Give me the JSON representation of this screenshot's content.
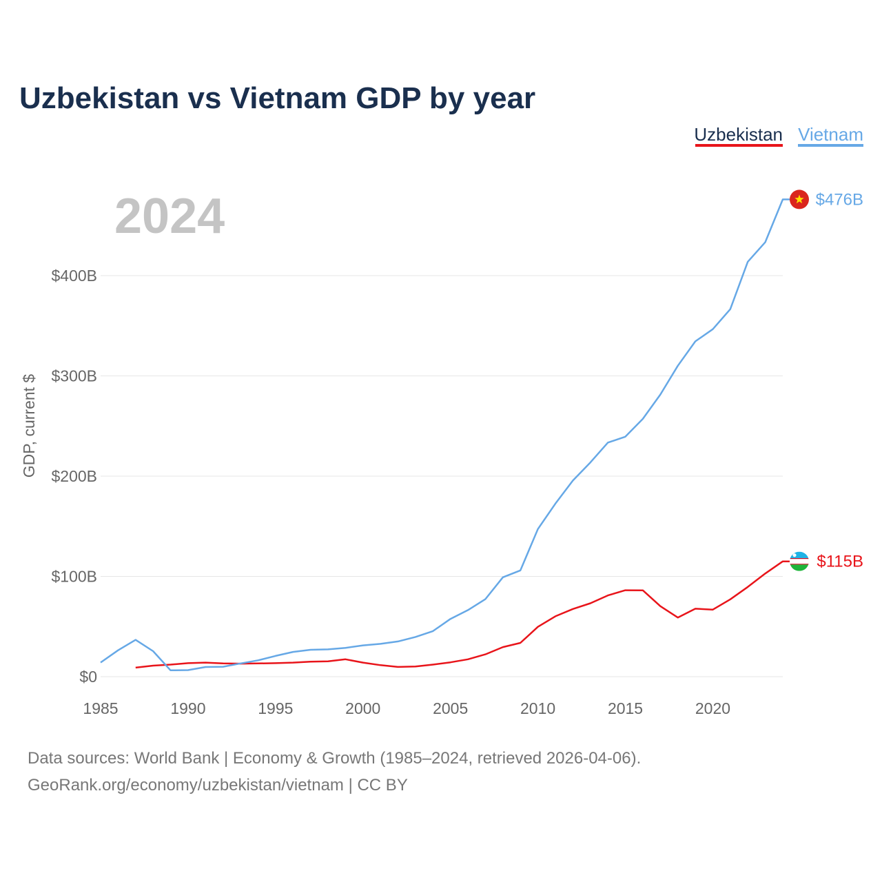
{
  "chart_data": {
    "type": "line",
    "title": "Uzbekistan vs Vietnam GDP by year",
    "year_label": "2024",
    "ylabel": "GDP, current $",
    "xlabel": "",
    "xlim": [
      1985,
      2024
    ],
    "ylim": [
      0,
      500
    ],
    "x_ticks": [
      1985,
      1990,
      1995,
      2000,
      2005,
      2010,
      2015,
      2020
    ],
    "y_ticks": [
      {
        "value": 0,
        "label": "$0"
      },
      {
        "value": 100,
        "label": "$100B"
      },
      {
        "value": 200,
        "label": "$200B"
      },
      {
        "value": 300,
        "label": "$300B"
      },
      {
        "value": 400,
        "label": "$400B"
      }
    ],
    "grid": true,
    "legend_position": "top-right",
    "series": [
      {
        "name": "Uzbekistan",
        "color": "#e8141a",
        "end_label": "$115B",
        "flag": "uzbekistan-flag",
        "x": [
          1987,
          1988,
          1989,
          1990,
          1991,
          1992,
          1993,
          1994,
          1995,
          1996,
          1997,
          1998,
          1999,
          2000,
          2001,
          2002,
          2003,
          2004,
          2005,
          2006,
          2007,
          2008,
          2009,
          2010,
          2011,
          2012,
          2013,
          2014,
          2015,
          2016,
          2017,
          2018,
          2019,
          2020,
          2021,
          2022,
          2023,
          2024
        ],
        "values": [
          9,
          11,
          12,
          13.5,
          14,
          13.2,
          13,
          13.2,
          13.5,
          14,
          15,
          15.3,
          17.3,
          14,
          11.5,
          9.7,
          10.1,
          12,
          14.3,
          17.3,
          22.3,
          29.5,
          33.7,
          49.7,
          60.2,
          67.5,
          73.2,
          81,
          86.2,
          86.1,
          70.3,
          59,
          67.8,
          66.9,
          77.1,
          89.5,
          102.9,
          115
        ]
      },
      {
        "name": "Vietnam",
        "color": "#66a8e6",
        "end_label": "$476B",
        "flag": "vietnam-flag",
        "x": [
          1985,
          1986,
          1987,
          1988,
          1989,
          1990,
          1991,
          1992,
          1993,
          1994,
          1995,
          1996,
          1997,
          1998,
          1999,
          2000,
          2001,
          2002,
          2003,
          2004,
          2005,
          2006,
          2007,
          2008,
          2009,
          2010,
          2011,
          2012,
          2013,
          2014,
          2015,
          2016,
          2017,
          2018,
          2019,
          2020,
          2021,
          2022,
          2023,
          2024
        ],
        "values": [
          14.1,
          26.3,
          36.7,
          25.4,
          6.3,
          6.5,
          9.6,
          9.9,
          13.2,
          16.3,
          20.7,
          24.7,
          26.8,
          27.2,
          28.7,
          31.2,
          32.7,
          35.1,
          39.6,
          45.4,
          57.6,
          66.4,
          77.4,
          99.1,
          106,
          147.2,
          172.6,
          195.6,
          213.7,
          233.5,
          239.3,
          257.1,
          281.4,
          310.1,
          334.4,
          346.6,
          366.5,
          413.8,
          433.4,
          476
        ]
      }
    ]
  },
  "source": {
    "line1": "Data sources: World Bank | Economy & Growth (1985–2024, retrieved 2026-04-06).",
    "line2": "GeoRank.org/economy/uzbekistan/vietnam | CC BY"
  }
}
